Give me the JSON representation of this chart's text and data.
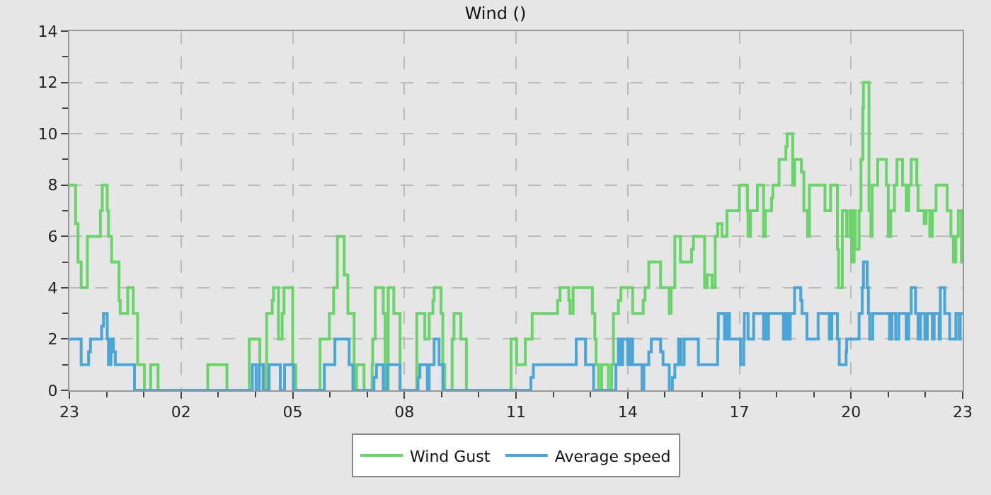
{
  "chart_data": {
    "type": "step",
    "title": "Wind ()",
    "xlim": [
      "--01-01T23:00",
      "--01-02T23:00"
    ],
    "xticks": [
      {
        "value": "--01-01T23:00",
        "label": "23"
      },
      {
        "value": "--01-02T00:00",
        "label": null
      },
      {
        "value": "--01-02T01:00",
        "label": null
      },
      {
        "value": "--01-02T02:00",
        "label": "02"
      },
      {
        "value": "--01-02T03:00",
        "label": null
      },
      {
        "value": "--01-02T04:00",
        "label": null
      },
      {
        "value": "--01-02T05:00",
        "label": "05"
      },
      {
        "value": "--01-02T06:00",
        "label": null
      },
      {
        "value": "--01-02T07:00",
        "label": null
      },
      {
        "value": "--01-02T08:00",
        "label": "08"
      },
      {
        "value": "--01-02T09:00",
        "label": null
      },
      {
        "value": "--01-02T10:00",
        "label": null
      },
      {
        "value": "--01-02T11:00",
        "label": "11"
      },
      {
        "value": "--01-02T12:00",
        "label": null
      },
      {
        "value": "--01-02T13:00",
        "label": null
      },
      {
        "value": "--01-02T14:00",
        "label": "14"
      },
      {
        "value": "--01-02T15:00",
        "label": null
      },
      {
        "value": "--01-02T16:00",
        "label": null
      },
      {
        "value": "--01-02T17:00",
        "label": "17"
      },
      {
        "value": "--01-02T18:00",
        "label": null
      },
      {
        "value": "--01-02T19:00",
        "label": null
      },
      {
        "value": "--01-02T20:00",
        "label": "20"
      },
      {
        "value": "--01-02T21:00",
        "label": null
      },
      {
        "value": "--01-02T22:00",
        "label": null
      },
      {
        "value": "--01-02T23:00",
        "label": "23"
      }
    ],
    "ylim": [
      0,
      14
    ],
    "yticks": [
      0,
      {
        "value": 1,
        "label": null
      },
      2,
      {
        "value": 3,
        "label": null
      },
      4,
      {
        "value": 5,
        "label": null
      },
      6,
      {
        "value": 7,
        "label": null
      },
      8,
      {
        "value": 9,
        "label": null
      },
      10,
      {
        "value": 11,
        "label": null
      },
      12,
      {
        "value": 13,
        "label": null
      },
      14
    ],
    "grid": true,
    "legend": "bottom",
    "line_style": "solid",
    "series": [
      {
        "name": "Wind Gust",
        "color": "#6ad46a",
        "x": [
          "--01-01T23:00",
          "--01-01T23:10",
          "--01-01T23:14",
          "--01-01T23:19",
          "--01-01T23:29",
          "--01-01T23:50",
          "--01-01T23:53",
          "--01-02T00:01",
          "--01-02T00:03",
          "--01-02T00:08",
          "--01-02T00:20",
          "--01-02T00:22",
          "--01-02T00:34",
          "--01-02T00:43",
          "--01-02T00:50",
          "--01-02T01:01",
          "--01-02T01:11",
          "--01-02T01:23",
          "--01-02T02:43",
          "--01-02T03:14",
          "--01-02T03:50",
          "--01-02T04:07",
          "--01-02T04:12",
          "--01-02T04:18",
          "--01-02T04:27",
          "--01-02T04:29",
          "--01-02T04:37",
          "--01-02T04:43",
          "--01-02T04:46",
          "--01-02T05:00",
          "--01-02T05:05",
          "--01-02T05:44",
          "--01-02T05:59",
          "--01-02T06:06",
          "--01-02T06:12",
          "--01-02T06:23",
          "--01-02T06:29",
          "--01-02T06:39",
          "--01-02T06:43",
          "--01-02T06:55",
          "--01-02T07:08",
          "--01-02T07:09",
          "--01-02T07:13",
          "--01-02T07:26",
          "--01-02T07:29",
          "--01-02T07:34",
          "--01-02T07:43",
          "--01-02T07:53",
          "--01-02T08:20",
          "--01-02T08:33",
          "--01-02T08:40",
          "--01-02T08:46",
          "--01-02T08:48",
          "--01-02T08:59",
          "--01-02T09:02",
          "--01-02T09:05",
          "--01-02T09:17",
          "--01-02T09:20",
          "--01-02T09:31",
          "--01-02T09:40",
          "--01-02T10:52",
          "--01-02T11:01",
          "--01-02T11:15",
          "--01-02T11:26",
          "--01-02T12:07",
          "--01-02T12:11",
          "--01-02T12:25",
          "--01-02T12:27",
          "--01-02T12:32",
          "--01-02T13:03",
          "--01-02T13:07",
          "--01-02T13:09",
          "--01-02T13:13",
          "--01-02T13:18",
          "--01-02T13:29",
          "--01-02T13:34",
          "--01-02T13:37",
          "--01-02T13:45",
          "--01-02T13:49",
          "--01-02T14:08",
          "--01-02T14:25",
          "--01-02T14:28",
          "--01-02T14:34",
          "--01-02T14:53",
          "--01-02T15:07",
          "--01-02T15:10",
          "--01-02T15:16",
          "--01-02T15:25",
          "--01-02T15:43",
          "--01-02T15:46",
          "--01-02T16:04",
          "--01-02T16:08",
          "--01-02T16:16",
          "--01-02T16:21",
          "--01-02T16:25",
          "--01-02T16:32",
          "--01-02T16:40",
          "--01-02T17:00",
          "--01-02T17:13",
          "--01-02T17:14",
          "--01-02T17:18",
          "--01-02T17:29",
          "--01-02T17:39",
          "--01-02T17:42",
          "--01-02T17:52",
          "--01-02T17:54",
          "--01-02T18:04",
          "--01-02T18:15",
          "--01-02T18:17",
          "--01-02T18:26",
          "--01-02T18:29",
          "--01-02T18:40",
          "--01-02T18:44",
          "--01-02T18:50",
          "--01-02T18:53",
          "--01-02T19:18",
          "--01-02T19:27",
          "--01-02T19:38",
          "--01-02T19:40",
          "--01-02T19:46",
          "--01-02T19:53",
          "--01-02T19:58",
          "--01-02T20:01",
          "--01-02T20:05",
          "--01-02T20:07",
          "--01-02T20:13",
          "--01-02T20:16",
          "--01-02T20:19",
          "--01-02T20:20",
          "--01-02T20:29",
          "--01-02T20:32",
          "--01-02T20:34",
          "--01-02T20:43",
          "--01-02T20:57",
          "--01-02T21:00",
          "--01-02T21:04",
          "--01-02T21:10",
          "--01-02T21:14",
          "--01-02T21:23",
          "--01-02T21:29",
          "--01-02T21:33",
          "--01-02T21:37",
          "--01-02T21:46",
          "--01-02T21:48",
          "--01-02T21:58",
          "--01-02T22:01",
          "--01-02T22:07",
          "--01-02T22:11",
          "--01-02T22:17",
          "--01-02T22:35",
          "--01-02T22:41",
          "--01-02T22:45",
          "--01-02T22:49",
          "--01-02T22:53",
          "--01-02T22:58",
          "--01-02T23:00"
        ],
        "values": [
          8,
          6.5,
          5,
          4,
          6,
          7,
          8,
          7,
          6,
          5,
          3.5,
          3,
          4,
          3,
          1,
          0,
          1,
          0,
          1,
          0,
          2,
          1,
          0,
          3,
          3.5,
          4,
          2,
          3,
          4,
          1,
          0,
          2,
          3,
          4,
          6,
          4.5,
          3,
          0,
          1,
          0,
          1,
          2,
          4,
          3,
          0,
          4,
          3,
          0,
          3,
          2,
          3,
          3.5,
          4,
          3,
          1,
          0,
          2,
          3,
          2,
          0,
          2,
          1,
          2,
          3,
          3.5,
          4,
          3.5,
          3,
          4,
          3,
          2,
          1,
          0,
          1,
          0,
          1,
          3,
          3.5,
          4,
          3,
          3.5,
          4,
          5,
          4,
          3,
          4,
          6,
          5,
          5.5,
          6,
          4,
          4.5,
          4,
          6,
          6.5,
          6,
          7,
          8,
          7,
          6,
          7,
          8,
          6,
          7,
          7.5,
          8,
          9,
          9.5,
          10,
          8,
          9,
          8.5,
          7,
          6,
          8,
          7,
          8,
          5.5,
          4,
          7,
          6,
          7,
          5,
          7,
          5.5,
          7,
          9,
          11,
          12,
          7,
          6,
          8,
          9,
          8,
          6,
          7,
          8,
          9,
          8,
          7,
          8,
          9,
          8,
          7,
          6.5,
          7,
          6,
          7,
          8,
          7,
          6,
          5,
          6,
          7,
          5,
          5
        ]
      },
      {
        "name": "Average speed",
        "color": "#4aa5d8",
        "x": [
          "--01-01T23:00",
          "--01-01T23:19",
          "--01-01T23:31",
          "--01-01T23:34",
          "--01-01T23:52",
          "--01-01T23:55",
          "--01-02T00:01",
          "--01-02T00:03",
          "--01-02T00:07",
          "--01-02T00:11",
          "--01-02T00:14",
          "--01-02T00:45",
          "--01-02T03:55",
          "--01-02T04:01",
          "--01-02T04:06",
          "--01-02T04:13",
          "--01-02T04:22",
          "--01-02T04:40",
          "--01-02T04:47",
          "--01-02T05:01",
          "--01-02T05:51",
          "--01-02T06:08",
          "--01-02T06:31",
          "--01-02T06:37",
          "--01-02T07:11",
          "--01-02T07:15",
          "--01-02T07:26",
          "--01-02T07:32",
          "--01-02T07:53",
          "--01-02T08:22",
          "--01-02T08:25",
          "--01-02T08:37",
          "--01-02T08:40",
          "--01-02T08:48",
          "--01-02T08:56",
          "--01-02T09:02",
          "--01-02T11:24",
          "--01-02T11:28",
          "--01-02T12:37",
          "--01-02T12:52",
          "--01-02T13:05",
          "--01-02T13:41",
          "--01-02T13:45",
          "--01-02T13:49",
          "--01-02T13:52",
          "--01-02T14:00",
          "--01-02T14:04",
          "--01-02T14:08",
          "--01-02T14:23",
          "--01-02T14:26",
          "--01-02T14:34",
          "--01-02T14:38",
          "--01-02T14:53",
          "--01-02T14:57",
          "--01-02T15:07",
          "--01-02T15:12",
          "--01-02T15:16",
          "--01-02T15:22",
          "--01-02T15:26",
          "--01-02T15:31",
          "--01-02T15:54",
          "--01-02T16:25",
          "--01-02T16:26",
          "--01-02T16:36",
          "--01-02T16:40",
          "--01-02T16:44",
          "--01-02T17:02",
          "--01-02T17:07",
          "--01-02T17:08",
          "--01-02T17:14",
          "--01-02T17:23",
          "--01-02T17:39",
          "--01-02T17:42",
          "--01-02T17:44",
          "--01-02T17:47",
          "--01-02T18:11",
          "--01-02T18:15",
          "--01-02T18:19",
          "--01-02T18:22",
          "--01-02T18:29",
          "--01-02T18:39",
          "--01-02T18:41",
          "--01-02T18:49",
          "--01-02T19:07",
          "--01-02T19:25",
          "--01-02T19:29",
          "--01-02T19:38",
          "--01-02T19:41",
          "--01-02T19:52",
          "--01-02T19:53",
          "--01-02T20:13",
          "--01-02T20:18",
          "--01-02T20:20",
          "--01-02T20:26",
          "--01-02T20:28",
          "--01-02T20:30",
          "--01-02T20:35",
          "--01-02T21:02",
          "--01-02T21:06",
          "--01-02T21:12",
          "--01-02T21:17",
          "--01-02T21:29",
          "--01-02T21:33",
          "--01-02T21:37",
          "--01-02T21:44",
          "--01-02T21:48",
          "--01-02T21:52",
          "--01-02T21:59",
          "--01-02T22:03",
          "--01-02T22:11",
          "--01-02T22:14",
          "--01-02T22:22",
          "--01-02T22:24",
          "--01-02T22:31",
          "--01-02T22:39",
          "--01-02T22:49",
          "--01-02T22:54",
          "--01-02T22:56",
          "--01-02T23:00"
        ],
        "values": [
          2,
          1,
          1.5,
          2,
          2.5,
          3,
          2,
          1,
          2,
          1.5,
          1,
          0,
          1,
          0,
          1,
          0,
          1,
          0,
          1,
          0,
          1,
          2,
          1,
          0,
          0.5,
          1,
          0,
          1,
          0,
          0.5,
          1,
          0,
          1,
          2,
          1,
          0,
          0.5,
          1,
          2,
          1,
          0,
          1,
          2,
          1,
          2,
          1,
          2,
          1,
          0,
          1,
          1.5,
          2,
          1.5,
          1,
          0,
          0.5,
          1,
          2,
          1,
          2,
          1,
          2,
          3,
          2,
          3,
          2,
          1,
          2,
          3,
          2,
          3,
          2,
          3,
          2,
          3,
          2,
          3,
          2,
          3,
          4,
          3.5,
          3,
          2,
          3,
          2,
          3,
          2,
          1,
          1.5,
          2,
          3,
          4,
          5,
          4,
          3,
          2,
          3,
          2,
          3,
          2,
          3,
          2,
          3,
          4,
          3,
          2,
          3,
          2,
          3,
          2,
          3,
          2,
          4,
          3,
          2,
          3,
          2,
          3,
          3
        ]
      }
    ]
  }
}
